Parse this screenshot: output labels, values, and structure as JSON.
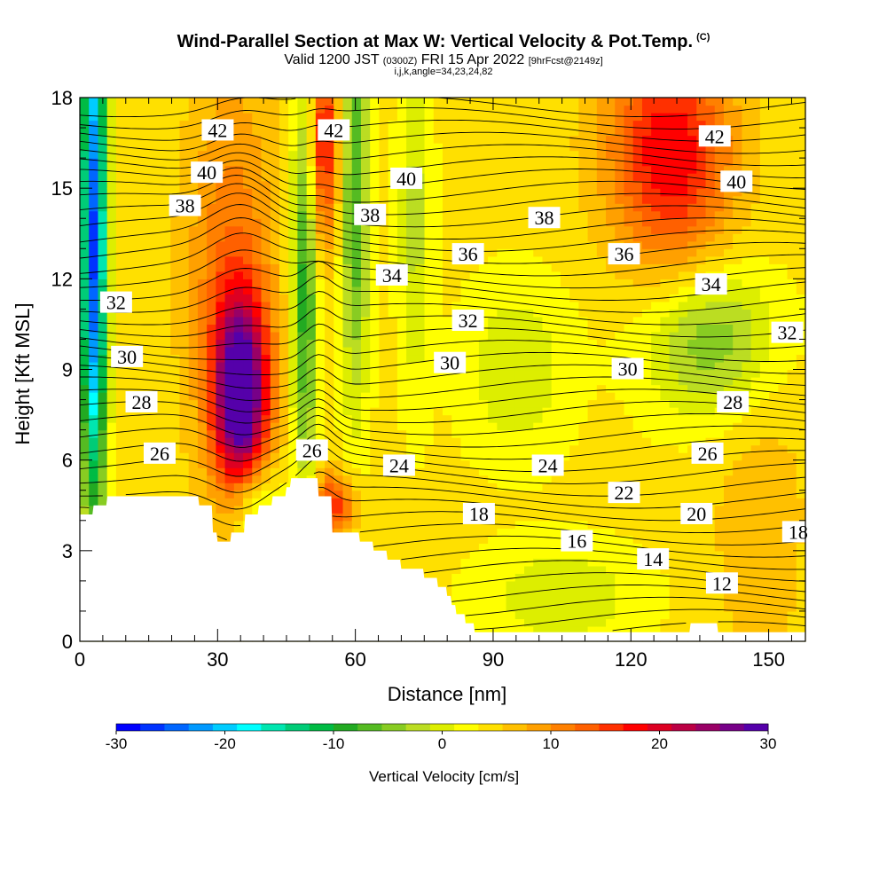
{
  "header": {
    "title": "Wind-Parallel Section at Max W: Vertical Velocity & Pot.Temp.",
    "copyright": "(C)",
    "valid_prefix": "Valid 1200 JST",
    "valid_utc": "(0300Z)",
    "valid_date": "FRI 15 Apr 2022",
    "forecast": "[9hrFcst@2149z]",
    "params": "i,j,k,angle=34,23,24,82"
  },
  "chart_data": {
    "type": "heatmap",
    "xlabel": "Distance [nm]",
    "ylabel": "Height [Kft MSL]",
    "xlim": [
      0,
      158
    ],
    "ylim": [
      0,
      18
    ],
    "x_ticks": [
      "0",
      "30",
      "60",
      "90",
      "120",
      "150"
    ],
    "y_ticks": [
      "0",
      "3",
      "6",
      "9",
      "12",
      "15",
      "18"
    ],
    "colorbar": {
      "label": "Vertical Velocity [cm/s]",
      "range": [
        -30,
        30
      ],
      "tick_labels": [
        "-30",
        "-20",
        "-10",
        "0",
        "10",
        "20",
        "30"
      ],
      "colors": [
        "#0000ff",
        "#0033ff",
        "#0066ff",
        "#0099ff",
        "#00ccff",
        "#00ffff",
        "#00e6b0",
        "#00cc77",
        "#00bb44",
        "#22aa22",
        "#55bb22",
        "#88cc22",
        "#bbdd22",
        "#ddee00",
        "#ffff00",
        "#ffe000",
        "#ffc000",
        "#ffa000",
        "#ff8000",
        "#ff6000",
        "#ff3000",
        "#ff0000",
        "#dd0022",
        "#bb0044",
        "#990066",
        "#770088",
        "#5500aa"
      ]
    },
    "theta_contour_labels": [
      "42",
      "42",
      "42",
      "40",
      "40",
      "40",
      "38",
      "38",
      "38",
      "36",
      "36",
      "34",
      "34",
      "32",
      "32",
      "32",
      "30",
      "30",
      "30",
      "28",
      "28",
      "26",
      "26",
      "26",
      "24",
      "24",
      "22",
      "20",
      "18",
      "18",
      "16",
      "14",
      "12"
    ],
    "notable_features": [
      {
        "feature": "updraft core",
        "x": 35,
        "y": 8,
        "w_cm_s": 28
      },
      {
        "feature": "updraft column",
        "x": 53,
        "y": 17,
        "w_cm_s": 20
      },
      {
        "feature": "updraft",
        "x": 128,
        "y": 16.5,
        "w_cm_s": 15
      },
      {
        "feature": "downdraft column",
        "x": 3,
        "y": 16.5,
        "w_cm_s": -20
      },
      {
        "feature": "downdraft column",
        "x": 49,
        "y": 12,
        "w_cm_s": -12
      },
      {
        "feature": "downdraft column",
        "x": 60,
        "y": 16,
        "w_cm_s": -10
      },
      {
        "feature": "downdraft",
        "x": 137,
        "y": 10,
        "w_cm_s": -8
      }
    ]
  }
}
